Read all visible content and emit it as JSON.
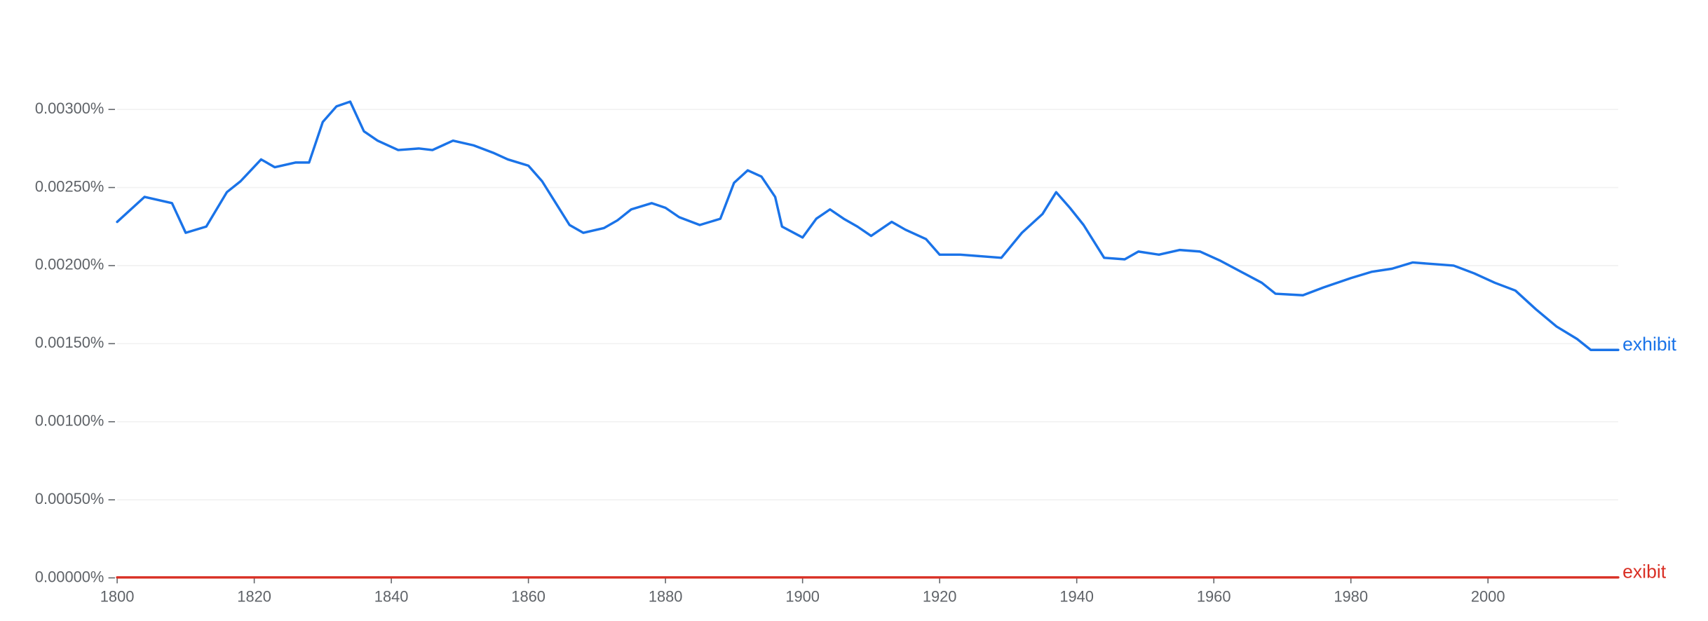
{
  "chart_data": {
    "type": "line",
    "x": [
      1800,
      1804,
      1808,
      1810,
      1813,
      1816,
      1818,
      1821,
      1823,
      1826,
      1828,
      1830,
      1832,
      1834,
      1836,
      1838,
      1841,
      1844,
      1846,
      1849,
      1852,
      1855,
      1857,
      1860,
      1862,
      1864,
      1866,
      1868,
      1871,
      1873,
      1875,
      1878,
      1880,
      1882,
      1885,
      1888,
      1890,
      1892,
      1894,
      1896,
      1897,
      1900,
      1902,
      1904,
      1906,
      1908,
      1910,
      1913,
      1915,
      1918,
      1920,
      1923,
      1926,
      1929,
      1932,
      1935,
      1937,
      1939,
      1941,
      1944,
      1947,
      1949,
      1952,
      1955,
      1958,
      1961,
      1964,
      1967,
      1969,
      1973,
      1976,
      1980,
      1983,
      1986,
      1989,
      1992,
      1995,
      1998,
      2001,
      2004,
      2007,
      2010,
      2013,
      2015,
      2019
    ],
    "series": [
      {
        "name": "exhibit",
        "color": "#1a73e8",
        "values": [
          0.00228,
          0.00244,
          0.0024,
          0.00221,
          0.00225,
          0.00247,
          0.00254,
          0.00268,
          0.00263,
          0.00266,
          0.00266,
          0.00292,
          0.00302,
          0.00305,
          0.00286,
          0.0028,
          0.00274,
          0.00275,
          0.00274,
          0.0028,
          0.00277,
          0.00272,
          0.00268,
          0.00264,
          0.00254,
          0.0024,
          0.00226,
          0.00221,
          0.00224,
          0.00229,
          0.00236,
          0.0024,
          0.00237,
          0.00231,
          0.00226,
          0.0023,
          0.00253,
          0.00261,
          0.00257,
          0.00244,
          0.00225,
          0.00218,
          0.0023,
          0.00236,
          0.0023,
          0.00225,
          0.00219,
          0.00228,
          0.00223,
          0.00217,
          0.00207,
          0.00207,
          0.00206,
          0.00205,
          0.00221,
          0.00233,
          0.00247,
          0.00237,
          0.00226,
          0.00205,
          0.00204,
          0.00209,
          0.00207,
          0.0021,
          0.00209,
          0.00203,
          0.00196,
          0.00189,
          0.00182,
          0.00181,
          0.00186,
          0.00192,
          0.00196,
          0.00198,
          0.00202,
          0.00201,
          0.002,
          0.00195,
          0.00189,
          0.00184,
          0.00172,
          0.00161,
          0.00153,
          0.00146,
          0.00146
        ]
      },
      {
        "name": "exibit",
        "color": "#d93025",
        "values": [
          3e-06,
          3e-06,
          3e-06,
          3e-06,
          3e-06,
          3e-06,
          3e-06,
          3e-06,
          3e-06,
          3e-06,
          3e-06,
          3e-06,
          3e-06,
          3e-06,
          3e-06,
          3e-06,
          3e-06,
          3e-06,
          3e-06,
          3e-06,
          3e-06,
          3e-06,
          3e-06,
          3e-06,
          3e-06,
          3e-06,
          3e-06,
          3e-06,
          3e-06,
          3e-06,
          3e-06,
          3e-06,
          3e-06,
          3e-06,
          3e-06,
          3e-06,
          3e-06,
          3e-06,
          3e-06,
          3e-06,
          3e-06,
          3e-06,
          3e-06,
          3e-06,
          3e-06,
          3e-06,
          3e-06,
          3e-06,
          3e-06,
          3e-06,
          3e-06,
          3e-06,
          3e-06,
          3e-06,
          3e-06,
          3e-06,
          3e-06,
          3e-06,
          3e-06,
          3e-06,
          3e-06,
          3e-06,
          3e-06,
          3e-06,
          3e-06,
          3e-06,
          3e-06,
          3e-06,
          3e-06,
          3e-06,
          3e-06,
          3e-06,
          3e-06,
          3e-06,
          3e-06,
          3e-06,
          3e-06,
          3e-06,
          3e-06,
          3e-06,
          3e-06,
          3e-06,
          3e-06,
          3e-06,
          3e-06
        ]
      }
    ],
    "xlim": [
      1800,
      2019
    ],
    "xticks": [
      1800,
      1820,
      1840,
      1860,
      1880,
      1900,
      1920,
      1940,
      1960,
      1980,
      2000
    ],
    "ylim": [
      0,
      0.0033
    ],
    "yticks": [
      {
        "value": 0,
        "label": "0.00000%"
      },
      {
        "value": 0.0005,
        "label": "0.00050%"
      },
      {
        "value": 0.001,
        "label": "0.00100%"
      },
      {
        "value": 0.0015,
        "label": "0.00150%"
      },
      {
        "value": 0.002,
        "label": "0.00200%"
      },
      {
        "value": 0.0025,
        "label": "0.00250%"
      },
      {
        "value": 0.003,
        "label": "0.00300%"
      }
    ],
    "grid": true
  }
}
